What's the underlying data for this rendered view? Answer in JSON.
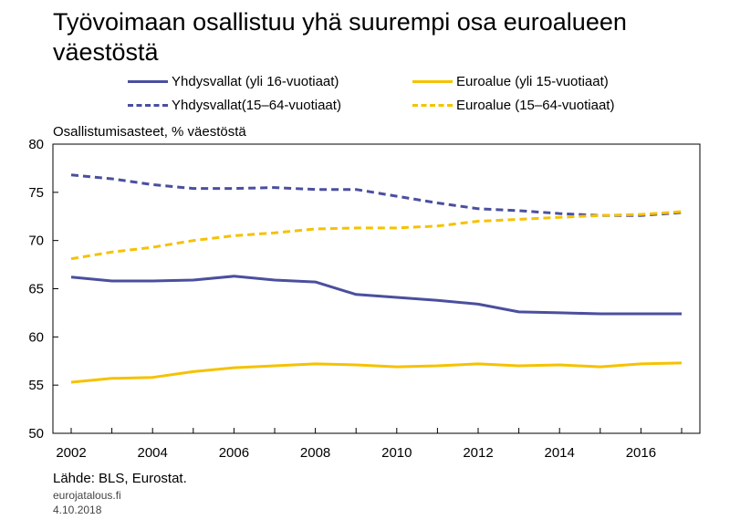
{
  "chart_data": {
    "type": "line",
    "title": "Työvoimaan osallistuu yhä suurempi osa euroalueen väestöstä",
    "ylabel": "Osallistumisasteet, % väestöstä",
    "xlabel": "",
    "ylim": [
      50,
      80
    ],
    "yticks": [
      50,
      55,
      60,
      65,
      70,
      75,
      80
    ],
    "xlim": [
      2002,
      2017
    ],
    "xticks": [
      2002,
      2004,
      2006,
      2008,
      2010,
      2012,
      2014,
      2016
    ],
    "grid": false,
    "legend_position": "top",
    "x": [
      2002,
      2003,
      2004,
      2005,
      2006,
      2007,
      2008,
      2009,
      2010,
      2011,
      2012,
      2013,
      2014,
      2015,
      2016,
      2017
    ],
    "series": [
      {
        "name": "Yhdysvallat (yli 16-vuotiaat)",
        "color": "#4a4f9e",
        "dash": "solid",
        "values": [
          66.2,
          65.8,
          65.8,
          65.9,
          66.3,
          65.9,
          65.7,
          64.4,
          64.1,
          63.8,
          63.4,
          62.6,
          62.5,
          62.4,
          62.4,
          62.4
        ]
      },
      {
        "name": "Euroalue (yli 15-vuotiaat)",
        "color": "#f5c200",
        "dash": "solid",
        "values": [
          55.3,
          55.7,
          55.8,
          56.4,
          56.8,
          57.0,
          57.2,
          57.1,
          56.9,
          57.0,
          57.2,
          57.0,
          57.1,
          56.9,
          57.2,
          57.3
        ]
      },
      {
        "name": "Yhdysvallat(15–64-vuotiaat)",
        "color": "#4a4f9e",
        "dash": "dashed",
        "values": [
          76.8,
          76.4,
          75.8,
          75.4,
          75.4,
          75.5,
          75.3,
          75.3,
          74.6,
          73.9,
          73.3,
          73.1,
          72.8,
          72.6,
          72.6,
          72.9
        ]
      },
      {
        "name": "Euroalue (15–64-vuotiaat)",
        "color": "#f5c200",
        "dash": "dashed",
        "values": [
          68.1,
          68.8,
          69.3,
          70.0,
          70.5,
          70.8,
          71.2,
          71.3,
          71.3,
          71.5,
          72.0,
          72.2,
          72.4,
          72.6,
          72.7,
          73.0
        ]
      }
    ]
  },
  "footer": {
    "source": "Lähde: BLS, Eurostat.",
    "site": "eurojatalous.fi",
    "date": "4.10.2018"
  }
}
